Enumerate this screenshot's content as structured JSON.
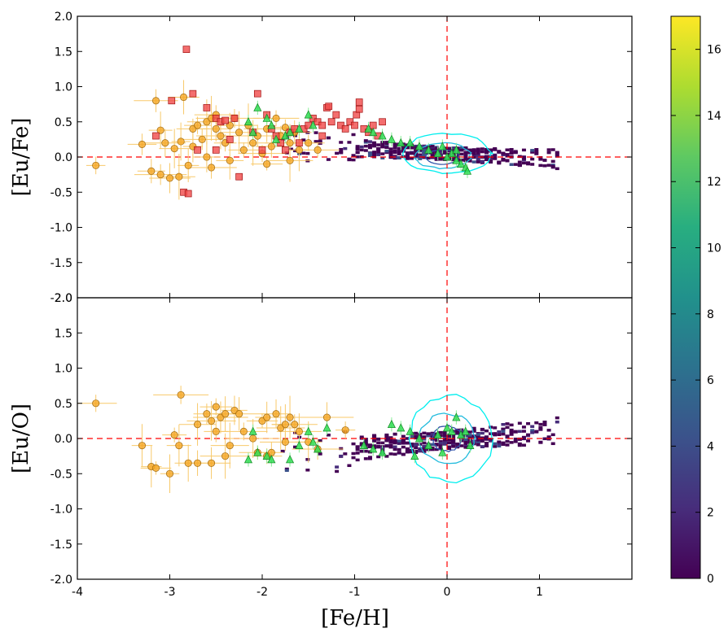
{
  "chart_data": {
    "type": "scatter",
    "xlabel": "[Fe/H]",
    "xlim": [
      -4,
      2
    ],
    "x_ticks": [
      "-4",
      "-3",
      "-2",
      "-1",
      "0",
      "1"
    ],
    "y_ticks": [
      "-2.0",
      "-1.5",
      "-1.0",
      "-0.5",
      "0.0",
      "0.5",
      "1.0",
      "1.5",
      "2.0"
    ],
    "colors": {
      "orange": "#f5a623",
      "red": "#f04a4a",
      "green": "#33dd55",
      "cyan": "#00eeee",
      "ref": "#ff0000"
    },
    "colorbar": {
      "min": 0,
      "max": 17,
      "ticks": [
        "0",
        "2",
        "4",
        "6",
        "8",
        "10",
        "12",
        "14",
        "16"
      ],
      "stops": [
        "#440154",
        "#472d7b",
        "#3b528b",
        "#2c728e",
        "#21918c",
        "#28ae80",
        "#5ec962",
        "#addc30",
        "#fde725"
      ]
    },
    "panels": [
      {
        "ylabel": "[Eu/Fe]",
        "ylim": [
          -2,
          2
        ],
        "reference_lines": {
          "x": 0,
          "y": 0
        },
        "orange_points": [
          [
            -3.8,
            -0.12
          ],
          [
            -3.3,
            0.18
          ],
          [
            -3.15,
            0.8
          ],
          [
            -3.1,
            0.38
          ],
          [
            -3.05,
            0.2
          ],
          [
            -3.2,
            -0.2
          ],
          [
            -3.1,
            -0.25
          ],
          [
            -3.0,
            -0.3
          ],
          [
            -2.95,
            0.12
          ],
          [
            -2.9,
            -0.28
          ],
          [
            -2.88,
            0.22
          ],
          [
            -2.85,
            0.85
          ],
          [
            -2.8,
            -0.12
          ],
          [
            -2.75,
            0.4
          ],
          [
            -2.7,
            0.45
          ],
          [
            -2.65,
            0.25
          ],
          [
            -2.6,
            0.5
          ],
          [
            -2.55,
            0.55
          ],
          [
            -2.5,
            0.4
          ],
          [
            -2.5,
            0.6
          ],
          [
            -2.45,
            0.3
          ],
          [
            -2.4,
            0.2
          ],
          [
            -2.35,
            0.45
          ],
          [
            -2.3,
            0.55
          ],
          [
            -2.25,
            0.35
          ],
          [
            -2.2,
            0.1
          ],
          [
            -2.15,
            0.45
          ],
          [
            -2.1,
            0.2
          ],
          [
            -2.05,
            0.3
          ],
          [
            -2.0,
            0.05
          ],
          [
            -1.95,
            0.4
          ],
          [
            -1.9,
            0.15
          ],
          [
            -1.85,
            0.55
          ],
          [
            -1.8,
            0.3
          ],
          [
            -1.75,
            0.42
          ],
          [
            -1.7,
            0.2
          ],
          [
            -1.65,
            0.35
          ],
          [
            -1.6,
            0.1
          ],
          [
            -1.5,
            0.2
          ],
          [
            -1.4,
            0.1
          ],
          [
            -2.55,
            -0.15
          ],
          [
            -2.35,
            -0.05
          ],
          [
            -1.95,
            -0.1
          ],
          [
            -1.7,
            -0.05
          ],
          [
            -2.75,
            0.15
          ],
          [
            -2.6,
            0.0
          ]
        ],
        "red_points": [
          [
            -2.82,
            1.53
          ],
          [
            -2.75,
            0.9
          ],
          [
            -3.15,
            0.3
          ],
          [
            -2.98,
            0.8
          ],
          [
            -2.85,
            -0.5
          ],
          [
            -2.8,
            -0.52
          ],
          [
            -2.6,
            0.7
          ],
          [
            -2.5,
            0.55
          ],
          [
            -2.45,
            0.5
          ],
          [
            -2.4,
            0.52
          ],
          [
            -2.35,
            0.25
          ],
          [
            -2.3,
            0.55
          ],
          [
            -2.25,
            -0.28
          ],
          [
            -2.1,
            0.35
          ],
          [
            -2.05,
            0.9
          ],
          [
            -1.95,
            0.6
          ],
          [
            -1.9,
            0.4
          ],
          [
            -1.85,
            0.3
          ],
          [
            -1.8,
            0.2
          ],
          [
            -1.75,
            0.1
          ],
          [
            -1.7,
            0.35
          ],
          [
            -1.65,
            0.4
          ],
          [
            -1.6,
            0.2
          ],
          [
            -1.55,
            0.4
          ],
          [
            -1.5,
            0.45
          ],
          [
            -1.45,
            0.55
          ],
          [
            -1.4,
            0.5
          ],
          [
            -1.35,
            0.45
          ],
          [
            -1.3,
            0.7
          ],
          [
            -1.28,
            0.72
          ],
          [
            -1.25,
            0.5
          ],
          [
            -1.2,
            0.6
          ],
          [
            -1.15,
            0.45
          ],
          [
            -1.1,
            0.4
          ],
          [
            -1.05,
            0.5
          ],
          [
            -1.0,
            0.45
          ],
          [
            -0.98,
            0.6
          ],
          [
            -0.95,
            0.78
          ],
          [
            -0.9,
            0.4
          ],
          [
            -0.85,
            0.35
          ],
          [
            -0.8,
            0.45
          ],
          [
            -0.75,
            0.3
          ],
          [
            -0.7,
            0.5
          ],
          [
            -2.5,
            0.1
          ],
          [
            -2.0,
            0.1
          ],
          [
            -2.7,
            0.1
          ],
          [
            -1.35,
            0.3
          ],
          [
            -0.95,
            0.68
          ]
        ],
        "green_points": [
          [
            -2.15,
            0.5
          ],
          [
            -2.1,
            0.35
          ],
          [
            -2.05,
            0.7
          ],
          [
            -1.95,
            0.55
          ],
          [
            -1.9,
            0.45
          ],
          [
            -1.85,
            0.25
          ],
          [
            -1.75,
            0.3
          ],
          [
            -1.7,
            0.35
          ],
          [
            -1.6,
            0.4
          ],
          [
            -1.5,
            0.6
          ],
          [
            -1.45,
            0.45
          ],
          [
            -0.85,
            0.4
          ],
          [
            -0.8,
            0.35
          ],
          [
            -0.7,
            0.3
          ],
          [
            -0.6,
            0.25
          ],
          [
            -0.5,
            0.2
          ],
          [
            -0.4,
            0.2
          ],
          [
            -0.3,
            0.15
          ],
          [
            -0.2,
            0.1
          ],
          [
            -0.1,
            0.05
          ],
          [
            0.0,
            0.0
          ],
          [
            0.05,
            0.05
          ],
          [
            0.1,
            0.1
          ],
          [
            0.15,
            -0.1
          ],
          [
            0.2,
            -0.15
          ],
          [
            0.22,
            -0.2
          ],
          [
            0.1,
            -0.05
          ],
          [
            -0.05,
            0.15
          ]
        ],
        "density": {
          "x_range": [
            -1.8,
            1.2
          ],
          "center_slope": -0.07,
          "center_intercept": 0.05,
          "spread": 0.07
        },
        "contours": [
          {
            "cx": 0.0,
            "cy": 0.05,
            "rx": 0.47,
            "ry": 0.28,
            "color": "#00eeee"
          },
          {
            "cx": -0.05,
            "cy": 0.02,
            "rx": 0.3,
            "ry": 0.18,
            "color": "#22bbdd"
          },
          {
            "cx": -0.05,
            "cy": 0.0,
            "rx": 0.18,
            "ry": 0.1,
            "color": "#3355aa"
          }
        ]
      },
      {
        "ylabel": "[Eu/O]",
        "ylim": [
          -2,
          2
        ],
        "reference_lines": {
          "x": 0,
          "y": 0
        },
        "orange_points": [
          [
            -3.8,
            0.5
          ],
          [
            -3.3,
            -0.1
          ],
          [
            -3.2,
            -0.4
          ],
          [
            -3.15,
            -0.42
          ],
          [
            -3.0,
            -0.5
          ],
          [
            -2.95,
            0.05
          ],
          [
            -2.9,
            -0.1
          ],
          [
            -2.88,
            0.62
          ],
          [
            -2.8,
            -0.35
          ],
          [
            -2.7,
            -0.35
          ],
          [
            -2.6,
            0.35
          ],
          [
            -2.55,
            0.25
          ],
          [
            -2.5,
            0.45
          ],
          [
            -2.5,
            0.1
          ],
          [
            -2.45,
            0.3
          ],
          [
            -2.4,
            0.35
          ],
          [
            -2.35,
            -0.1
          ],
          [
            -2.3,
            0.4
          ],
          [
            -2.25,
            0.35
          ],
          [
            -2.2,
            0.1
          ],
          [
            -2.1,
            0.0
          ],
          [
            -2.05,
            -0.2
          ],
          [
            -2.0,
            0.25
          ],
          [
            -1.95,
            0.3
          ],
          [
            -1.9,
            -0.2
          ],
          [
            -1.85,
            0.35
          ],
          [
            -1.8,
            0.15
          ],
          [
            -1.75,
            0.2
          ],
          [
            -1.7,
            0.3
          ],
          [
            -1.65,
            0.2
          ],
          [
            -1.6,
            0.1
          ],
          [
            -1.5,
            -0.05
          ],
          [
            -1.4,
            -0.15
          ],
          [
            -1.3,
            0.3
          ],
          [
            -1.1,
            0.12
          ],
          [
            -2.55,
            -0.35
          ],
          [
            -2.4,
            -0.25
          ],
          [
            -1.95,
            -0.25
          ],
          [
            -1.75,
            -0.05
          ],
          [
            -2.7,
            0.2
          ]
        ],
        "green_points": [
          [
            -2.15,
            -0.3
          ],
          [
            -2.1,
            0.1
          ],
          [
            -2.05,
            -0.2
          ],
          [
            -1.95,
            -0.25
          ],
          [
            -1.9,
            -0.3
          ],
          [
            -1.7,
            -0.3
          ],
          [
            -1.6,
            -0.1
          ],
          [
            -1.5,
            0.1
          ],
          [
            -1.45,
            -0.05
          ],
          [
            -1.4,
            -0.15
          ],
          [
            -1.3,
            0.15
          ],
          [
            -0.9,
            -0.1
          ],
          [
            -0.8,
            -0.15
          ],
          [
            -0.7,
            -0.2
          ],
          [
            -0.6,
            0.2
          ],
          [
            -0.5,
            0.15
          ],
          [
            -0.4,
            0.1
          ],
          [
            -0.3,
            0.0
          ],
          [
            -0.2,
            -0.1
          ],
          [
            -0.1,
            0.05
          ],
          [
            0.0,
            0.15
          ],
          [
            0.05,
            0.1
          ],
          [
            0.1,
            0.3
          ],
          [
            0.15,
            0.05
          ],
          [
            0.2,
            0.1
          ],
          [
            -0.05,
            -0.2
          ],
          [
            0.25,
            -0.1
          ],
          [
            -0.35,
            -0.25
          ]
        ],
        "density": {
          "x_range": [
            -1.8,
            1.2
          ],
          "center_slope": 0.12,
          "center_intercept": -0.02,
          "spread": 0.12
        },
        "contours": [
          {
            "cx": 0.05,
            "cy": 0.0,
            "rx": 0.45,
            "ry": 0.6,
            "color": "#00eeee"
          },
          {
            "cx": 0.0,
            "cy": 0.0,
            "rx": 0.3,
            "ry": 0.35,
            "color": "#22bbdd"
          },
          {
            "cx": 0.0,
            "cy": 0.0,
            "rx": 0.16,
            "ry": 0.18,
            "color": "#3355aa"
          }
        ]
      }
    ]
  }
}
